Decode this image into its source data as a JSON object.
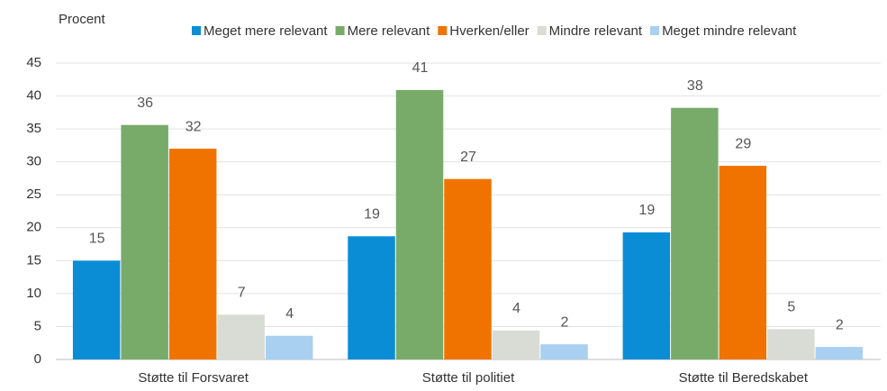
{
  "chart_data": {
    "type": "bar",
    "y_label": "Procent",
    "categories": [
      "Støtte til Forsvaret",
      "Støtte til politiet",
      "Støtte til Beredskabet"
    ],
    "series": [
      {
        "name": "Meget mere relevant",
        "color": "#0b8dd6",
        "values": [
          15.0,
          18.7,
          19.3
        ],
        "value_labels": [
          "15",
          "19",
          "19"
        ]
      },
      {
        "name": "Mere relevant",
        "color": "#78ab6a",
        "values": [
          35.6,
          40.9,
          38.2
        ],
        "value_labels": [
          "36",
          "41",
          "38"
        ]
      },
      {
        "name": "Hverken/eller",
        "color": "#f07300",
        "values": [
          32.0,
          27.4,
          29.4
        ],
        "value_labels": [
          "32",
          "27",
          "29"
        ]
      },
      {
        "name": "Mindre relevant",
        "color": "#d9dbd5",
        "values": [
          6.8,
          4.4,
          4.6
        ],
        "value_labels": [
          "7",
          "4",
          "5"
        ]
      },
      {
        "name": "Meget mindre relevant",
        "color": "#a9d0f0",
        "values": [
          3.6,
          2.3,
          1.9
        ],
        "value_labels": [
          "4",
          "2",
          "2"
        ]
      }
    ],
    "ylim": [
      0,
      45
    ],
    "yticks": [
      0,
      5,
      10,
      15,
      20,
      25,
      30,
      35,
      40,
      45
    ],
    "grid": true
  }
}
